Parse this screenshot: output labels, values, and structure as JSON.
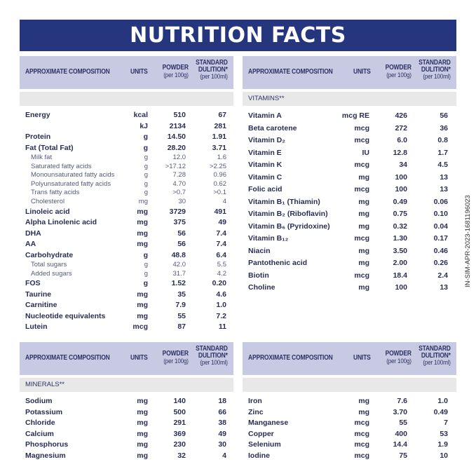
{
  "title": "NUTRITION FACTS",
  "header": {
    "composition": "APPROXIMATE COMPOSITION",
    "units": "UNITS",
    "powder": "POWDER",
    "powder_sub": "(per 100g)",
    "standard": "STANDARD",
    "dilution": "DULITION*",
    "standard_sub": "(per 100ml)"
  },
  "side_code": "IN-SIM-APR-2023-1681196023",
  "tables": {
    "macros": {
      "section": "",
      "rows": [
        {
          "name": "Energy",
          "unit": "kcal",
          "powder": "510",
          "std": "67"
        },
        {
          "name": "",
          "unit": "kJ",
          "powder": "2134",
          "std": "281"
        },
        {
          "name": "Protein",
          "unit": "g",
          "powder": "14.50",
          "std": "1.91"
        },
        {
          "name": "Fat (Total Fat)",
          "unit": "g",
          "powder": "28.20",
          "std": "3.71"
        },
        {
          "name": "Milk fat",
          "unit": "g",
          "powder": "12.0",
          "std": "1.6",
          "sub": true
        },
        {
          "name": "Saturated fatty acids",
          "unit": "g",
          "powder": ">17.12",
          "std": ">2.25",
          "sub": true
        },
        {
          "name": "Monounsaturated fatty acids",
          "unit": "g",
          "powder": "7.28",
          "std": "0.96",
          "sub": true
        },
        {
          "name": "Polyunsaturated fatty acids",
          "unit": "g",
          "powder": "4.70",
          "std": "0.62",
          "sub": true
        },
        {
          "name": "Trans fatty acids",
          "unit": "g",
          "powder": ">0.7",
          "std": ">0.1",
          "sub": true
        },
        {
          "name": "Cholesterol",
          "unit": "mg",
          "powder": "30",
          "std": "4",
          "sub": true
        },
        {
          "name": "Linoleic acid",
          "unit": "mg",
          "powder": "3729",
          "std": "491"
        },
        {
          "name": "Alpha Linolenic acid",
          "unit": "mg",
          "powder": "375",
          "std": "49"
        },
        {
          "name": "DHA",
          "unit": "mg",
          "powder": "56",
          "std": "7.4"
        },
        {
          "name": "AA",
          "unit": "mg",
          "powder": "56",
          "std": "7.4"
        },
        {
          "name": "Carbohydrate",
          "unit": "g",
          "powder": "48.8",
          "std": "6.4"
        },
        {
          "name": "Total sugars",
          "unit": "g",
          "powder": "42.0",
          "std": "5.5",
          "sub": true
        },
        {
          "name": "Added sugars",
          "unit": "g",
          "powder": "31.7",
          "std": "4.2",
          "sub": true
        },
        {
          "name": "FOS",
          "unit": "g",
          "powder": "1.52",
          "std": "0.20"
        },
        {
          "name": "Taurine",
          "unit": "mg",
          "powder": "35",
          "std": "4.6"
        },
        {
          "name": "Carnitine",
          "unit": "mg",
          "powder": "7.9",
          "std": "1.0"
        },
        {
          "name": "Nucleotide equivalents",
          "unit": "mg",
          "powder": "55",
          "std": "7.2"
        },
        {
          "name": "Lutein",
          "unit": "mcg",
          "powder": "87",
          "std": "11"
        }
      ]
    },
    "vitamins": {
      "section": "VITAMINS**",
      "rows": [
        {
          "name": "Vitamin A",
          "unit": "mcg RE",
          "powder": "426",
          "std": "56"
        },
        {
          "name": "Beta carotene",
          "unit": "mcg",
          "powder": "272",
          "std": "36"
        },
        {
          "name": "Vitamin D₂",
          "unit": "mcg",
          "powder": "6.0",
          "std": "0.8"
        },
        {
          "name": "Vitamin E",
          "unit": "IU",
          "powder": "12.8",
          "std": "1.7"
        },
        {
          "name": "Vitamin K",
          "unit": "mcg",
          "powder": "34",
          "std": "4.5"
        },
        {
          "name": "Vitamin C",
          "unit": "mg",
          "powder": "100",
          "std": "13"
        },
        {
          "name": "Folic acid",
          "unit": "mcg",
          "powder": "100",
          "std": "13"
        },
        {
          "name": "Vitamin B₁ (Thiamin)",
          "unit": "mg",
          "powder": "0.49",
          "std": "0.06"
        },
        {
          "name": "Vitamin B₂ (Riboflavin)",
          "unit": "mg",
          "powder": "0.75",
          "std": "0.10"
        },
        {
          "name": "Vitamin B₆ (Pyridoxine)",
          "unit": "mg",
          "powder": "0.32",
          "std": "0.04"
        },
        {
          "name": "Vitamin B₁₂",
          "unit": "mcg",
          "powder": "1.30",
          "std": "0.17"
        },
        {
          "name": "Niacin",
          "unit": "mg",
          "powder": "3.50",
          "std": "0.46"
        },
        {
          "name": "Pantothenic acid",
          "unit": "mg",
          "powder": "2.00",
          "std": "0.26"
        },
        {
          "name": "Biotin",
          "unit": "mcg",
          "powder": "18.4",
          "std": "2.4"
        },
        {
          "name": "Choline",
          "unit": "mg",
          "powder": "100",
          "std": "13"
        }
      ]
    },
    "minerals": {
      "section": "MINERALS**",
      "rows": [
        {
          "name": "Sodium",
          "unit": "mg",
          "powder": "140",
          "std": "18"
        },
        {
          "name": "Potassium",
          "unit": "mg",
          "powder": "500",
          "std": "66"
        },
        {
          "name": "Chloride",
          "unit": "mg",
          "powder": "291",
          "std": "38"
        },
        {
          "name": "Calcium",
          "unit": "mg",
          "powder": "369",
          "std": "49"
        },
        {
          "name": "Phosphorus",
          "unit": "mg",
          "powder": "230",
          "std": "30"
        },
        {
          "name": "Magnesium",
          "unit": "mg",
          "powder": "32",
          "std": "4"
        }
      ]
    },
    "trace": {
      "section": "",
      "rows": [
        {
          "name": "Iron",
          "unit": "mg",
          "powder": "7.6",
          "std": "1.0"
        },
        {
          "name": "Zinc",
          "unit": "mg",
          "powder": "3.70",
          "std": "0.49"
        },
        {
          "name": "Manganese",
          "unit": "mcg",
          "powder": "55",
          "std": "7"
        },
        {
          "name": "Copper",
          "unit": "mcg",
          "powder": "400",
          "std": "53"
        },
        {
          "name": "Selenium",
          "unit": "mcg",
          "powder": "14.4",
          "std": "1.9"
        },
        {
          "name": "Iodine",
          "unit": "mcg",
          "powder": "75",
          "std": "10"
        }
      ]
    }
  }
}
